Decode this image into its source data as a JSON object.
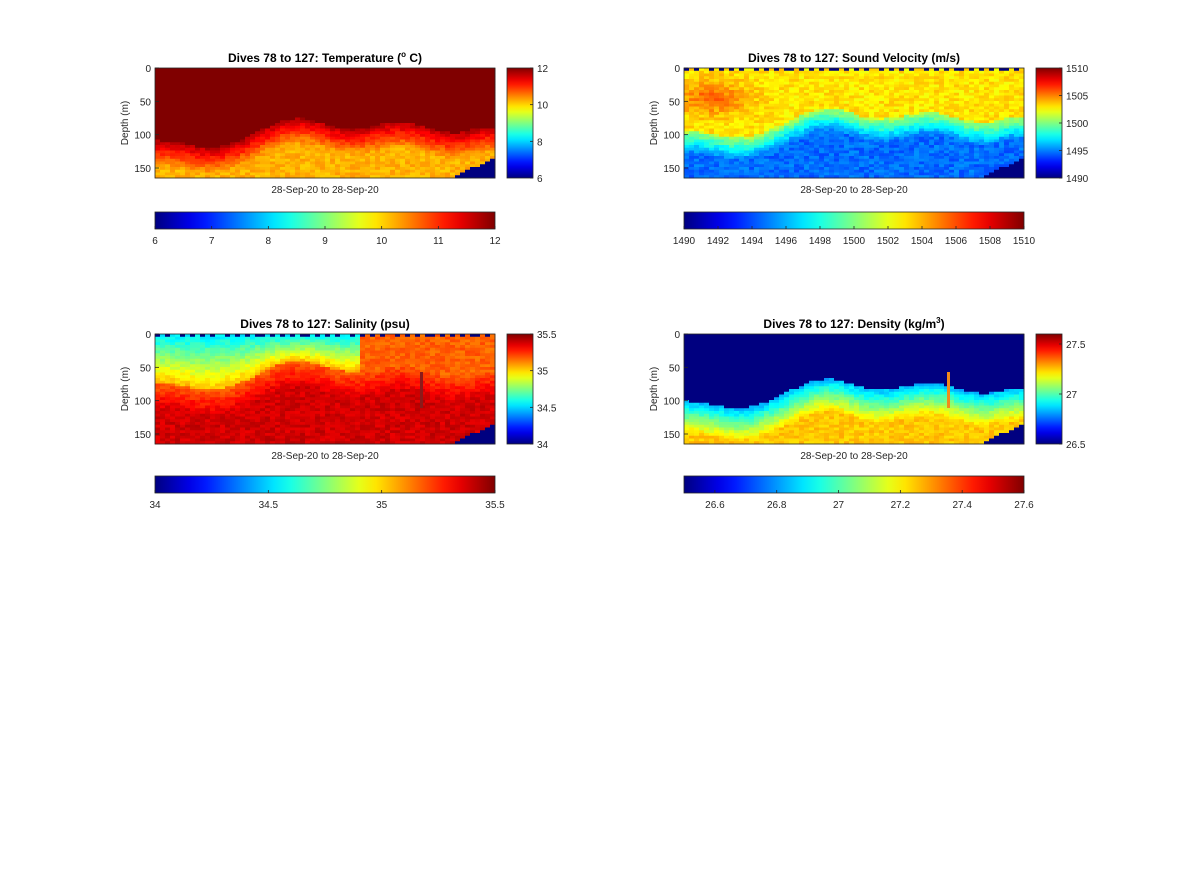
{
  "chart_data": [
    {
      "type": "heatmap",
      "title": "Dives 78 to 127: Temperature (",
      "title_sup": "o",
      "title_end": " C)",
      "ylabel": "Depth (m)",
      "xlabel": "28-Sep-20 to 28-Sep-20",
      "ylim": [
        0,
        165
      ],
      "y_ticks": [
        "0",
        "50",
        "100",
        "150"
      ],
      "y_tick_values": [
        0,
        50,
        100,
        150
      ],
      "clim": [
        6,
        12
      ],
      "side_cbar_ticks": [
        "6",
        "8",
        "10",
        "12"
      ],
      "bottom_cbar_ticks": [
        "6",
        "7",
        "8",
        "9",
        "10",
        "11",
        "12"
      ],
      "colormap": "jet",
      "field": "temperature",
      "dives": [
        78,
        127
      ]
    },
    {
      "type": "heatmap",
      "title": "Dives 78 to 127: Sound Velocity (m/s)",
      "title_sup": "",
      "title_end": "",
      "ylabel": "Depth (m)",
      "xlabel": "28-Sep-20 to 28-Sep-20",
      "ylim": [
        0,
        165
      ],
      "y_ticks": [
        "0",
        "50",
        "100",
        "150"
      ],
      "y_tick_values": [
        0,
        50,
        100,
        150
      ],
      "clim": [
        1490,
        1510
      ],
      "side_cbar_ticks": [
        "1490",
        "1495",
        "1500",
        "1505",
        "1510"
      ],
      "bottom_cbar_ticks": [
        "1490",
        "1492",
        "1494",
        "1496",
        "1498",
        "1500",
        "1502",
        "1504",
        "1506",
        "1508",
        "1510"
      ],
      "colormap": "jet",
      "field": "sound_velocity",
      "dives": [
        78,
        127
      ]
    },
    {
      "type": "heatmap",
      "title": "Dives 78 to 127: Salinity (psu)",
      "title_sup": "",
      "title_end": "",
      "ylabel": "Depth (m)",
      "xlabel": "28-Sep-20 to 28-Sep-20",
      "ylim": [
        0,
        165
      ],
      "y_ticks": [
        "0",
        "50",
        "100",
        "150"
      ],
      "y_tick_values": [
        0,
        50,
        100,
        150
      ],
      "clim": [
        34,
        35.5
      ],
      "side_cbar_ticks": [
        "34",
        "34.5",
        "35",
        "35.5"
      ],
      "bottom_cbar_ticks": [
        "34",
        "34.5",
        "35",
        "35.5"
      ],
      "colormap": "jet",
      "field": "salinity",
      "dives": [
        78,
        127
      ]
    },
    {
      "type": "heatmap",
      "title": "Dives 78 to 127: Density (kg/m",
      "title_sup": "3",
      "title_end": ")",
      "ylabel": "Depth (m)",
      "xlabel": "28-Sep-20 to 28-Sep-20",
      "ylim": [
        0,
        165
      ],
      "y_ticks": [
        "0",
        "50",
        "100",
        "150"
      ],
      "y_tick_values": [
        0,
        50,
        100,
        150
      ],
      "clim": [
        26.5,
        27.6
      ],
      "side_cbar_ticks": [
        "26.5",
        "27",
        "27.5"
      ],
      "bottom_cbar_ticks": [
        "26.6",
        "26.8",
        "27",
        "27.2",
        "27.4",
        "27.6"
      ],
      "colormap": "jet",
      "field": "density",
      "dives": [
        78,
        127
      ]
    }
  ]
}
